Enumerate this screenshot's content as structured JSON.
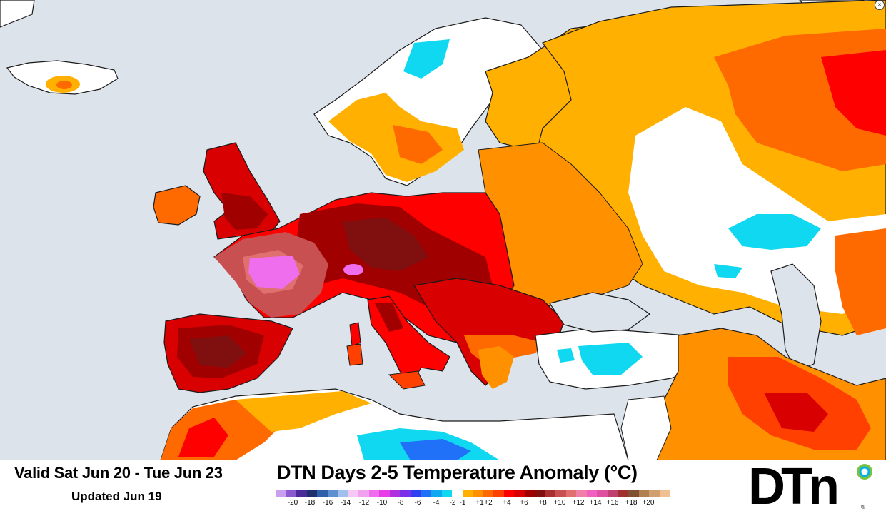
{
  "map": {
    "colors": {
      "sea": "#dde3ea",
      "land_neutral": "#ffffff",
      "border": "#1a1a1a"
    }
  },
  "legend": {
    "valid_text": "Valid Sat Jun 20 - Tue Jun 23",
    "updated_text": "Updated Jun 19",
    "title": "DTN Days 2-5 Temperature Anomaly (°C)",
    "scale_colors": [
      "#c9a0f0",
      "#8a5ad0",
      "#4b2b9a",
      "#1f2f6e",
      "#2f5fa8",
      "#5f8fd0",
      "#9fc0ec",
      "#f6c8f6",
      "#f2a0f0",
      "#ee6eee",
      "#e83ee8",
      "#b030e0",
      "#7830e8",
      "#3040f0",
      "#2070f8",
      "#10a8f0",
      "#10d8f0",
      "#ffffff",
      "#ffb000",
      "#ff9000",
      "#ff6a00",
      "#ff4000",
      "#ff0000",
      "#d80000",
      "#a00000",
      "#801010",
      "#a83030",
      "#c85050",
      "#e07070",
      "#f080a8",
      "#f060c0",
      "#e050a0",
      "#c04070",
      "#a03030",
      "#805030",
      "#b08050",
      "#d0a070",
      "#f0c090"
    ],
    "tick_labels": [
      "-20",
      "-18",
      "-16",
      "-14",
      "-12",
      "-10",
      "-8",
      "-6",
      "-4",
      "-2",
      "-1",
      "+1",
      "+2",
      "+4",
      "+6",
      "+8",
      "+10",
      "+12",
      "+14",
      "+16",
      "+18",
      "+20"
    ]
  },
  "logo": {
    "text": "DTn",
    "reg": "®"
  }
}
